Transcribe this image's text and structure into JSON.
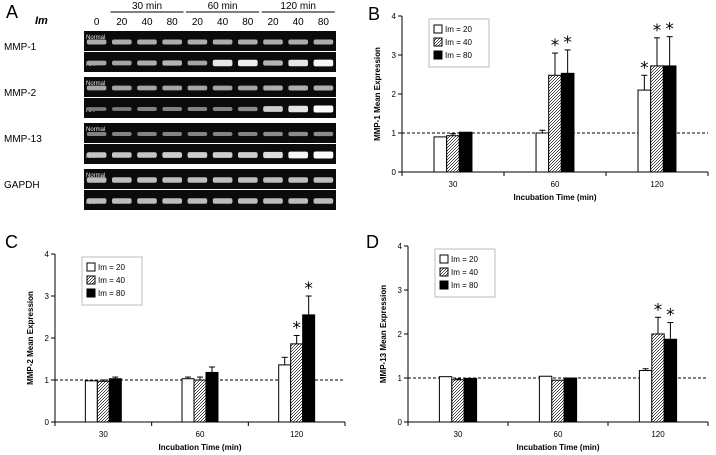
{
  "gel": {
    "letter": "A",
    "im_label": "Im",
    "groups": [
      {
        "label": "30 min",
        "lanes": [
          "20",
          "40",
          "80"
        ]
      },
      {
        "label": "60 min",
        "lanes": [
          "20",
          "40",
          "80"
        ]
      },
      {
        "label": "120 min",
        "lanes": [
          "20",
          "40",
          "80"
        ]
      }
    ],
    "control_lane": "0",
    "genes": [
      {
        "name": "MMP-1",
        "rows": [
          {
            "label": "Normal",
            "intensity": [
              0.5,
              0.5,
              0.5,
              0.5,
              0.5,
              0.5,
              0.5,
              0.5,
              0.5,
              0.5
            ]
          },
          {
            "label": "RA",
            "intensity": [
              0.45,
              0.45,
              0.5,
              0.55,
              0.45,
              0.85,
              0.9,
              0.55,
              0.85,
              0.95
            ]
          }
        ]
      },
      {
        "name": "MMP-2",
        "rows": [
          {
            "label": "Normal",
            "intensity": [
              0.45,
              0.45,
              0.45,
              0.45,
              0.45,
              0.45,
              0.45,
              0.5,
              0.5,
              0.5
            ]
          },
          {
            "label": "RA",
            "intensity": [
              0.2,
              0.2,
              0.25,
              0.25,
              0.25,
              0.25,
              0.3,
              0.7,
              0.85,
              1.0
            ]
          }
        ]
      },
      {
        "name": "MMP-13",
        "rows": [
          {
            "label": "Normal",
            "intensity": [
              0.25,
              0.25,
              0.25,
              0.25,
              0.25,
              0.25,
              0.25,
              0.3,
              0.3,
              0.3
            ]
          },
          {
            "label": "RA",
            "intensity": [
              0.65,
              0.65,
              0.65,
              0.7,
              0.7,
              0.7,
              0.7,
              0.8,
              0.95,
              1.0
            ]
          }
        ]
      },
      {
        "name": "GAPDH",
        "rows": [
          {
            "label": "Normal",
            "intensity": [
              0.6,
              0.6,
              0.6,
              0.6,
              0.6,
              0.6,
              0.6,
              0.6,
              0.6,
              0.6
            ]
          },
          {
            "label": "RA",
            "intensity": [
              0.6,
              0.6,
              0.6,
              0.6,
              0.6,
              0.6,
              0.6,
              0.6,
              0.6,
              0.6
            ]
          }
        ]
      }
    ]
  },
  "chart_data": [
    {
      "panel": "B",
      "type": "bar",
      "categories": [
        "30",
        "60",
        "120"
      ],
      "xlabel": "Incubation Time (min)",
      "ylabel": "MMP-1 Mean Expression",
      "ylim": [
        0,
        4
      ],
      "yticks": [
        0,
        1,
        2,
        3,
        4
      ],
      "reference_line": 1,
      "legend_position": "top-left",
      "series": [
        {
          "name": "Im = 20",
          "fill": "white",
          "values": [
            0.9,
            1.0,
            2.1
          ],
          "errors": [
            0.0,
            0.07,
            0.38
          ],
          "significant": [
            false,
            false,
            true
          ]
        },
        {
          "name": "Im = 40",
          "fill": "hatch",
          "values": [
            0.93,
            2.48,
            2.72
          ],
          "errors": [
            0.05,
            0.57,
            0.72
          ],
          "significant": [
            false,
            true,
            true
          ]
        },
        {
          "name": "Im = 80",
          "fill": "black",
          "values": [
            1.02,
            2.53,
            2.72
          ],
          "errors": [
            0.0,
            0.6,
            0.75
          ],
          "significant": [
            false,
            true,
            true
          ]
        }
      ]
    },
    {
      "panel": "C",
      "type": "bar",
      "categories": [
        "30",
        "60",
        "120"
      ],
      "xlabel": "Incubation Time (min)",
      "ylabel": "MMP-2 Mean Expression",
      "ylim": [
        0,
        4
      ],
      "yticks": [
        0,
        1,
        2,
        3,
        4
      ],
      "reference_line": 1,
      "legend_position": "top-left",
      "series": [
        {
          "name": "Im = 20",
          "fill": "white",
          "values": [
            0.98,
            1.03,
            1.36
          ],
          "errors": [
            0.0,
            0.04,
            0.18
          ],
          "significant": [
            false,
            false,
            false
          ]
        },
        {
          "name": "Im = 40",
          "fill": "hatch",
          "values": [
            0.97,
            1.0,
            1.86
          ],
          "errors": [
            0.03,
            0.07,
            0.2
          ],
          "significant": [
            false,
            false,
            true
          ]
        },
        {
          "name": "Im = 80",
          "fill": "black",
          "values": [
            1.03,
            1.18,
            2.55
          ],
          "errors": [
            0.04,
            0.13,
            0.45
          ],
          "significant": [
            false,
            false,
            true
          ]
        }
      ]
    },
    {
      "panel": "D",
      "type": "bar",
      "categories": [
        "30",
        "60",
        "120"
      ],
      "xlabel": "Incubation Time (min)",
      "ylabel": "MMP-13 Mean Expression",
      "ylim": [
        0,
        4
      ],
      "yticks": [
        0,
        1,
        2,
        3,
        4
      ],
      "reference_line": 1,
      "legend_position": "top-left",
      "series": [
        {
          "name": "Im = 20",
          "fill": "white",
          "values": [
            1.03,
            1.04,
            1.17
          ],
          "errors": [
            0.0,
            0.0,
            0.04
          ],
          "significant": [
            false,
            false,
            false
          ]
        },
        {
          "name": "Im = 40",
          "fill": "hatch",
          "values": [
            0.96,
            0.95,
            2.0
          ],
          "errors": [
            0.02,
            0.0,
            0.38
          ],
          "significant": [
            false,
            false,
            true
          ]
        },
        {
          "name": "Im = 80",
          "fill": "black",
          "values": [
            0.99,
            1.0,
            1.88
          ],
          "errors": [
            0.0,
            0.0,
            0.38
          ],
          "significant": [
            false,
            false,
            true
          ]
        }
      ]
    }
  ]
}
